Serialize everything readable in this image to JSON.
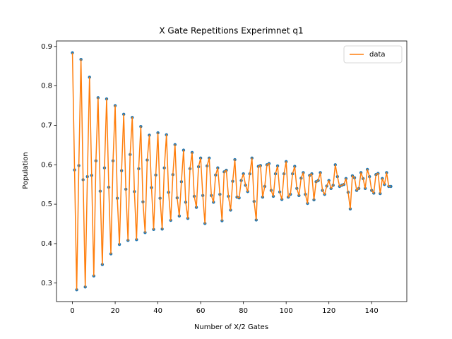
{
  "chart_data": {
    "type": "line",
    "title": "X Gate Repetitions Experimnet q1",
    "x_label": "Number of X/2 Gates",
    "y_label": "Population",
    "x": [
      0,
      1,
      2,
      3,
      4,
      5,
      6,
      7,
      8,
      9,
      10,
      11,
      12,
      13,
      14,
      15,
      16,
      17,
      18,
      19,
      20,
      21,
      22,
      23,
      24,
      25,
      26,
      27,
      28,
      29,
      30,
      31,
      32,
      33,
      34,
      35,
      36,
      37,
      38,
      39,
      40,
      41,
      42,
      43,
      44,
      45,
      46,
      47,
      48,
      49,
      50,
      51,
      52,
      53,
      54,
      55,
      56,
      57,
      58,
      59,
      60,
      61,
      62,
      63,
      64,
      65,
      66,
      67,
      68,
      69,
      70,
      71,
      72,
      73,
      74,
      75,
      76,
      77,
      78,
      79,
      80,
      81,
      82,
      83,
      84,
      85,
      86,
      87,
      88,
      89,
      90,
      91,
      92,
      93,
      94,
      95,
      96,
      97,
      98,
      99,
      100,
      101,
      102,
      103,
      104,
      105,
      106,
      107,
      108,
      109,
      110,
      111,
      112,
      113,
      114,
      115,
      116,
      117,
      118,
      119,
      120,
      121,
      122,
      123,
      124,
      125,
      126,
      127,
      128,
      129,
      130,
      131,
      132,
      133,
      134,
      135,
      136,
      137,
      138,
      139,
      140,
      141,
      142,
      143,
      144,
      145,
      146,
      147,
      148,
      149
    ],
    "series": [
      {
        "name": "data",
        "color": "#ff7f0e",
        "marker_color": "#1f77b4",
        "values": [
          0.884,
          0.587,
          0.283,
          0.598,
          0.867,
          0.562,
          0.29,
          0.57,
          0.822,
          0.573,
          0.318,
          0.61,
          0.77,
          0.533,
          0.347,
          0.592,
          0.767,
          0.543,
          0.374,
          0.61,
          0.75,
          0.515,
          0.398,
          0.585,
          0.728,
          0.538,
          0.408,
          0.626,
          0.72,
          0.532,
          0.41,
          0.59,
          0.697,
          0.506,
          0.428,
          0.612,
          0.675,
          0.542,
          0.436,
          0.574,
          0.681,
          0.515,
          0.437,
          0.592,
          0.676,
          0.53,
          0.459,
          0.575,
          0.651,
          0.516,
          0.47,
          0.557,
          0.637,
          0.505,
          0.464,
          0.59,
          0.631,
          0.52,
          0.492,
          0.595,
          0.617,
          0.522,
          0.451,
          0.597,
          0.617,
          0.522,
          0.505,
          0.574,
          0.592,
          0.525,
          0.458,
          0.582,
          0.586,
          0.52,
          0.485,
          0.558,
          0.613,
          0.518,
          0.516,
          0.56,
          0.577,
          0.548,
          0.532,
          0.577,
          0.617,
          0.507,
          0.46,
          0.596,
          0.598,
          0.518,
          0.545,
          0.6,
          0.603,
          0.535,
          0.52,
          0.577,
          0.597,
          0.531,
          0.512,
          0.577,
          0.608,
          0.518,
          0.525,
          0.577,
          0.596,
          0.54,
          0.522,
          0.566,
          0.58,
          0.525,
          0.502,
          0.573,
          0.577,
          0.511,
          0.557,
          0.56,
          0.58,
          0.535,
          0.525,
          0.546,
          0.56,
          0.54,
          0.548,
          0.6,
          0.57,
          0.545,
          0.548,
          0.55,
          0.565,
          0.53,
          0.488,
          0.572,
          0.567,
          0.535,
          0.54,
          0.58,
          0.565,
          0.54,
          0.588,
          0.57,
          0.535,
          0.528,
          0.575,
          0.578,
          0.527,
          0.565,
          0.55,
          0.58,
          0.545,
          0.545
        ]
      }
    ],
    "xlim": [
      -7.45,
      156.45
    ],
    "ylim": [
      0.253,
      0.914
    ],
    "xticks": [
      0,
      20,
      40,
      60,
      80,
      100,
      120,
      140
    ],
    "yticks": [
      0.3,
      0.4,
      0.5,
      0.6,
      0.7,
      0.8,
      0.9
    ],
    "legend": "upper right",
    "grid": false
  }
}
